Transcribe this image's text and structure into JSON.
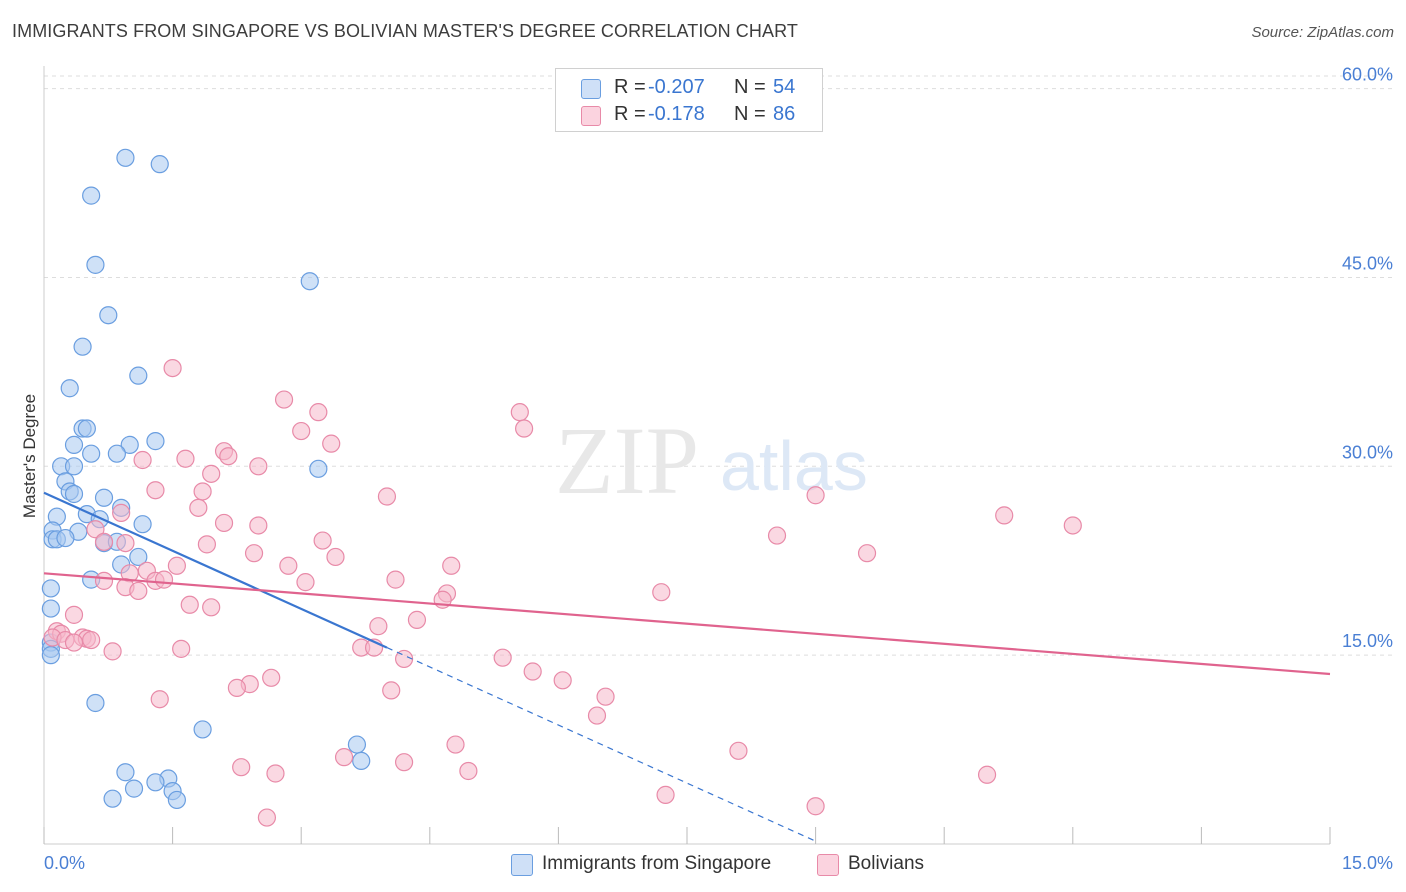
{
  "header": {
    "title": "IMMIGRANTS FROM SINGAPORE VS BOLIVIAN MASTER'S DEGREE CORRELATION CHART",
    "source": "Source: ZipAtlas.com"
  },
  "watermark": {
    "zip": "ZIP",
    "atlas": "atlas"
  },
  "legend": {
    "rows": [
      {
        "r_label": "R =",
        "r_value": "-0.207",
        "n_label": "N =",
        "n_value": "54",
        "color": "#a8c8f0"
      },
      {
        "r_label": "R =",
        "r_value": "-0.178",
        "n_label": "N =",
        "n_value": "86",
        "color": "#f5b8cb"
      }
    ]
  },
  "bottom_legend": {
    "items": [
      {
        "label": "Immigrants from Singapore",
        "color": "#a8c8f0"
      },
      {
        "label": "Bolivians",
        "color": "#f5b8cb"
      }
    ]
  },
  "colors": {
    "blue_fill": "#a8c8f0",
    "blue_stroke": "#6a9ee0",
    "blue_line": "#3a76d0",
    "pink_fill": "#f5b8cb",
    "pink_stroke": "#e88aa8",
    "pink_line": "#e0638e",
    "grid": "#dddddd",
    "tick_text": "#4a7fd4"
  },
  "chart_data": {
    "type": "scatter",
    "title": "IMMIGRANTS FROM SINGAPORE VS BOLIVIAN MASTER'S DEGREE CORRELATION CHART",
    "xlabel": "",
    "ylabel": "Master's Degree",
    "xlim": [
      0,
      15
    ],
    "ylim": [
      0,
      61
    ],
    "x_tick_labels": [
      "0.0%",
      "15.0%"
    ],
    "y_ticks": [
      15,
      30,
      45,
      60
    ],
    "y_tick_labels": [
      "15.0%",
      "30.0%",
      "45.0%",
      "60.0%"
    ],
    "grid": true,
    "series": [
      {
        "name": "Immigrants from Singapore",
        "color": "#a8c8f0",
        "trend": {
          "x0": 0,
          "y0": 27.9,
          "x1": 4.0,
          "y1": 15.6,
          "dashed_to_x": 9.0
        },
        "points": [
          [
            0.95,
            54.5
          ],
          [
            1.35,
            54.0
          ],
          [
            0.55,
            51.5
          ],
          [
            0.6,
            46.0
          ],
          [
            3.1,
            44.7
          ],
          [
            0.75,
            42.0
          ],
          [
            0.45,
            39.5
          ],
          [
            1.1,
            37.2
          ],
          [
            0.3,
            36.2
          ],
          [
            0.45,
            33.0
          ],
          [
            0.5,
            33.0
          ],
          [
            1.3,
            32.0
          ],
          [
            0.35,
            31.7
          ],
          [
            1.0,
            31.7
          ],
          [
            0.55,
            31.0
          ],
          [
            0.85,
            31.0
          ],
          [
            0.2,
            30.0
          ],
          [
            0.35,
            30.0
          ],
          [
            3.2,
            29.8
          ],
          [
            0.25,
            28.8
          ],
          [
            0.3,
            28.0
          ],
          [
            0.35,
            27.8
          ],
          [
            0.7,
            27.5
          ],
          [
            0.9,
            26.7
          ],
          [
            0.15,
            26.0
          ],
          [
            0.5,
            26.2
          ],
          [
            0.65,
            25.8
          ],
          [
            1.15,
            25.4
          ],
          [
            0.1,
            24.9
          ],
          [
            0.4,
            24.8
          ],
          [
            0.1,
            24.2
          ],
          [
            0.15,
            24.2
          ],
          [
            0.25,
            24.3
          ],
          [
            0.7,
            23.9
          ],
          [
            0.85,
            24.0
          ],
          [
            1.1,
            22.8
          ],
          [
            0.9,
            22.2
          ],
          [
            0.55,
            21.0
          ],
          [
            0.08,
            20.3
          ],
          [
            0.08,
            18.7
          ],
          [
            0.6,
            11.2
          ],
          [
            1.85,
            9.1
          ],
          [
            3.65,
            7.9
          ],
          [
            3.7,
            6.6
          ],
          [
            0.95,
            5.7
          ],
          [
            1.45,
            5.2
          ],
          [
            1.3,
            4.9
          ],
          [
            1.05,
            4.4
          ],
          [
            1.5,
            4.2
          ],
          [
            0.8,
            3.6
          ],
          [
            1.55,
            3.5
          ],
          [
            0.08,
            16.0
          ],
          [
            0.08,
            15.5
          ],
          [
            0.08,
            15.0
          ]
        ]
      },
      {
        "name": "Bolivians",
        "color": "#f5b8cb",
        "trend": {
          "x0": 0,
          "y0": 21.5,
          "x1": 15.0,
          "y1": 13.5
        },
        "points": [
          [
            1.5,
            37.8
          ],
          [
            2.8,
            35.3
          ],
          [
            3.2,
            34.3
          ],
          [
            5.55,
            34.3
          ],
          [
            3.0,
            32.8
          ],
          [
            5.6,
            33.0
          ],
          [
            3.35,
            31.8
          ],
          [
            2.1,
            31.2
          ],
          [
            2.15,
            30.8
          ],
          [
            1.15,
            30.5
          ],
          [
            1.65,
            30.6
          ],
          [
            2.5,
            30.0
          ],
          [
            1.95,
            29.4
          ],
          [
            4.0,
            27.6
          ],
          [
            1.3,
            28.1
          ],
          [
            1.85,
            28.0
          ],
          [
            9.0,
            27.7
          ],
          [
            1.8,
            26.7
          ],
          [
            11.2,
            26.1
          ],
          [
            12.0,
            25.3
          ],
          [
            2.1,
            25.5
          ],
          [
            2.5,
            25.3
          ],
          [
            0.6,
            25.0
          ],
          [
            0.9,
            26.3
          ],
          [
            8.55,
            24.5
          ],
          [
            3.25,
            24.1
          ],
          [
            0.7,
            24.0
          ],
          [
            1.9,
            23.8
          ],
          [
            0.95,
            23.9
          ],
          [
            9.6,
            23.1
          ],
          [
            2.45,
            23.1
          ],
          [
            3.4,
            22.8
          ],
          [
            4.75,
            22.1
          ],
          [
            1.55,
            22.1
          ],
          [
            2.85,
            22.1
          ],
          [
            1.2,
            21.7
          ],
          [
            1.0,
            21.5
          ],
          [
            4.1,
            21.0
          ],
          [
            3.05,
            20.8
          ],
          [
            0.7,
            20.9
          ],
          [
            1.3,
            20.9
          ],
          [
            1.4,
            21.0
          ],
          [
            0.95,
            20.4
          ],
          [
            1.1,
            20.1
          ],
          [
            4.7,
            19.9
          ],
          [
            7.2,
            20.0
          ],
          [
            4.65,
            19.4
          ],
          [
            1.7,
            19.0
          ],
          [
            1.95,
            18.8
          ],
          [
            0.35,
            18.2
          ],
          [
            4.35,
            17.8
          ],
          [
            3.9,
            17.3
          ],
          [
            0.15,
            16.9
          ],
          [
            0.2,
            16.7
          ],
          [
            0.45,
            16.4
          ],
          [
            0.5,
            16.3
          ],
          [
            0.1,
            16.4
          ],
          [
            0.25,
            16.2
          ],
          [
            0.55,
            16.2
          ],
          [
            0.35,
            16.0
          ],
          [
            3.7,
            15.6
          ],
          [
            3.85,
            15.6
          ],
          [
            1.6,
            15.5
          ],
          [
            0.8,
            15.3
          ],
          [
            5.35,
            14.8
          ],
          [
            4.2,
            14.7
          ],
          [
            5.7,
            13.7
          ],
          [
            2.65,
            13.2
          ],
          [
            6.05,
            13.0
          ],
          [
            2.4,
            12.7
          ],
          [
            2.25,
            12.4
          ],
          [
            4.05,
            12.2
          ],
          [
            6.55,
            11.7
          ],
          [
            1.35,
            11.5
          ],
          [
            6.45,
            10.2
          ],
          [
            4.8,
            7.9
          ],
          [
            8.1,
            7.4
          ],
          [
            3.5,
            6.9
          ],
          [
            4.2,
            6.5
          ],
          [
            2.3,
            6.1
          ],
          [
            2.7,
            5.6
          ],
          [
            4.95,
            5.8
          ],
          [
            11.0,
            5.5
          ],
          [
            7.25,
            3.9
          ],
          [
            9.0,
            3.0
          ],
          [
            2.6,
            2.1
          ]
        ]
      }
    ]
  }
}
